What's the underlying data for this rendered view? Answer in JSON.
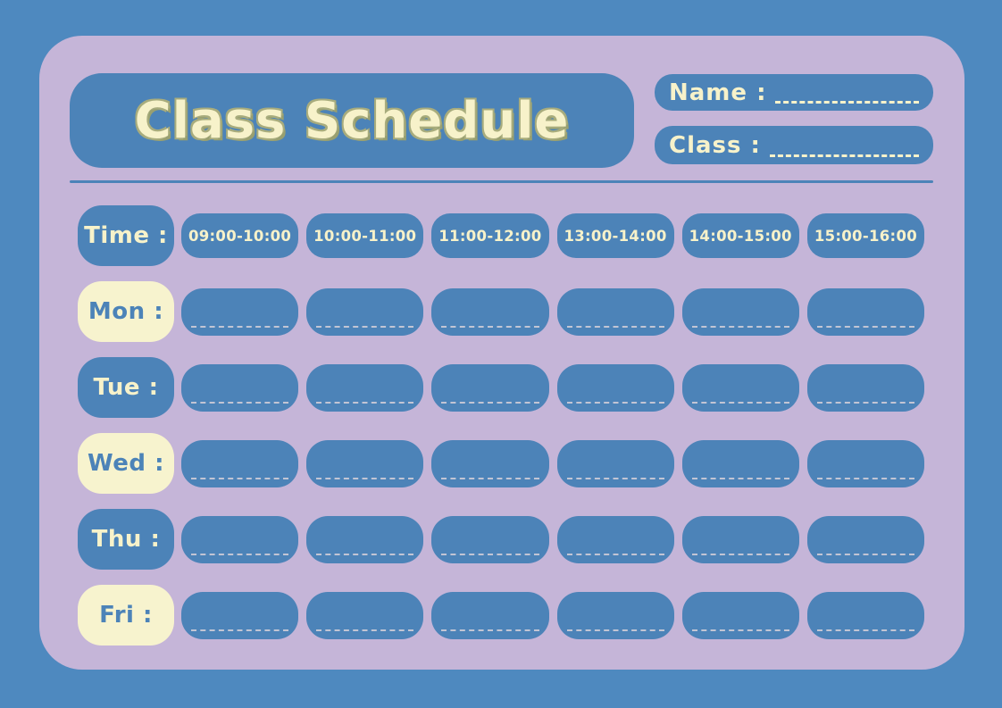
{
  "header": {
    "title": "Class Schedule",
    "name_label": "Name :",
    "class_label": "Class :"
  },
  "schedule": {
    "time_label": "Time :",
    "time_slots": [
      "09:00-10:00",
      "10:00-11:00",
      "11:00-12:00",
      "13:00-14:00",
      "14:00-15:00",
      "15:00-16:00"
    ],
    "days": [
      {
        "label": "Mon :",
        "style": "cream"
      },
      {
        "label": "Tue :",
        "style": "blue"
      },
      {
        "label": "Wed :",
        "style": "cream"
      },
      {
        "label": "Thu :",
        "style": "blue"
      },
      {
        "label": "Fri :",
        "style": "cream"
      }
    ]
  },
  "colors": {
    "outer_background": "#4E89BF",
    "panel_background": "#C5B5D8",
    "block_blue": "#4C83B8",
    "cream": "#F7F3CE",
    "title_text": "#F7F2CA",
    "title_outline": "#A8AC7D",
    "cell_dash": "#D7D1D8"
  }
}
